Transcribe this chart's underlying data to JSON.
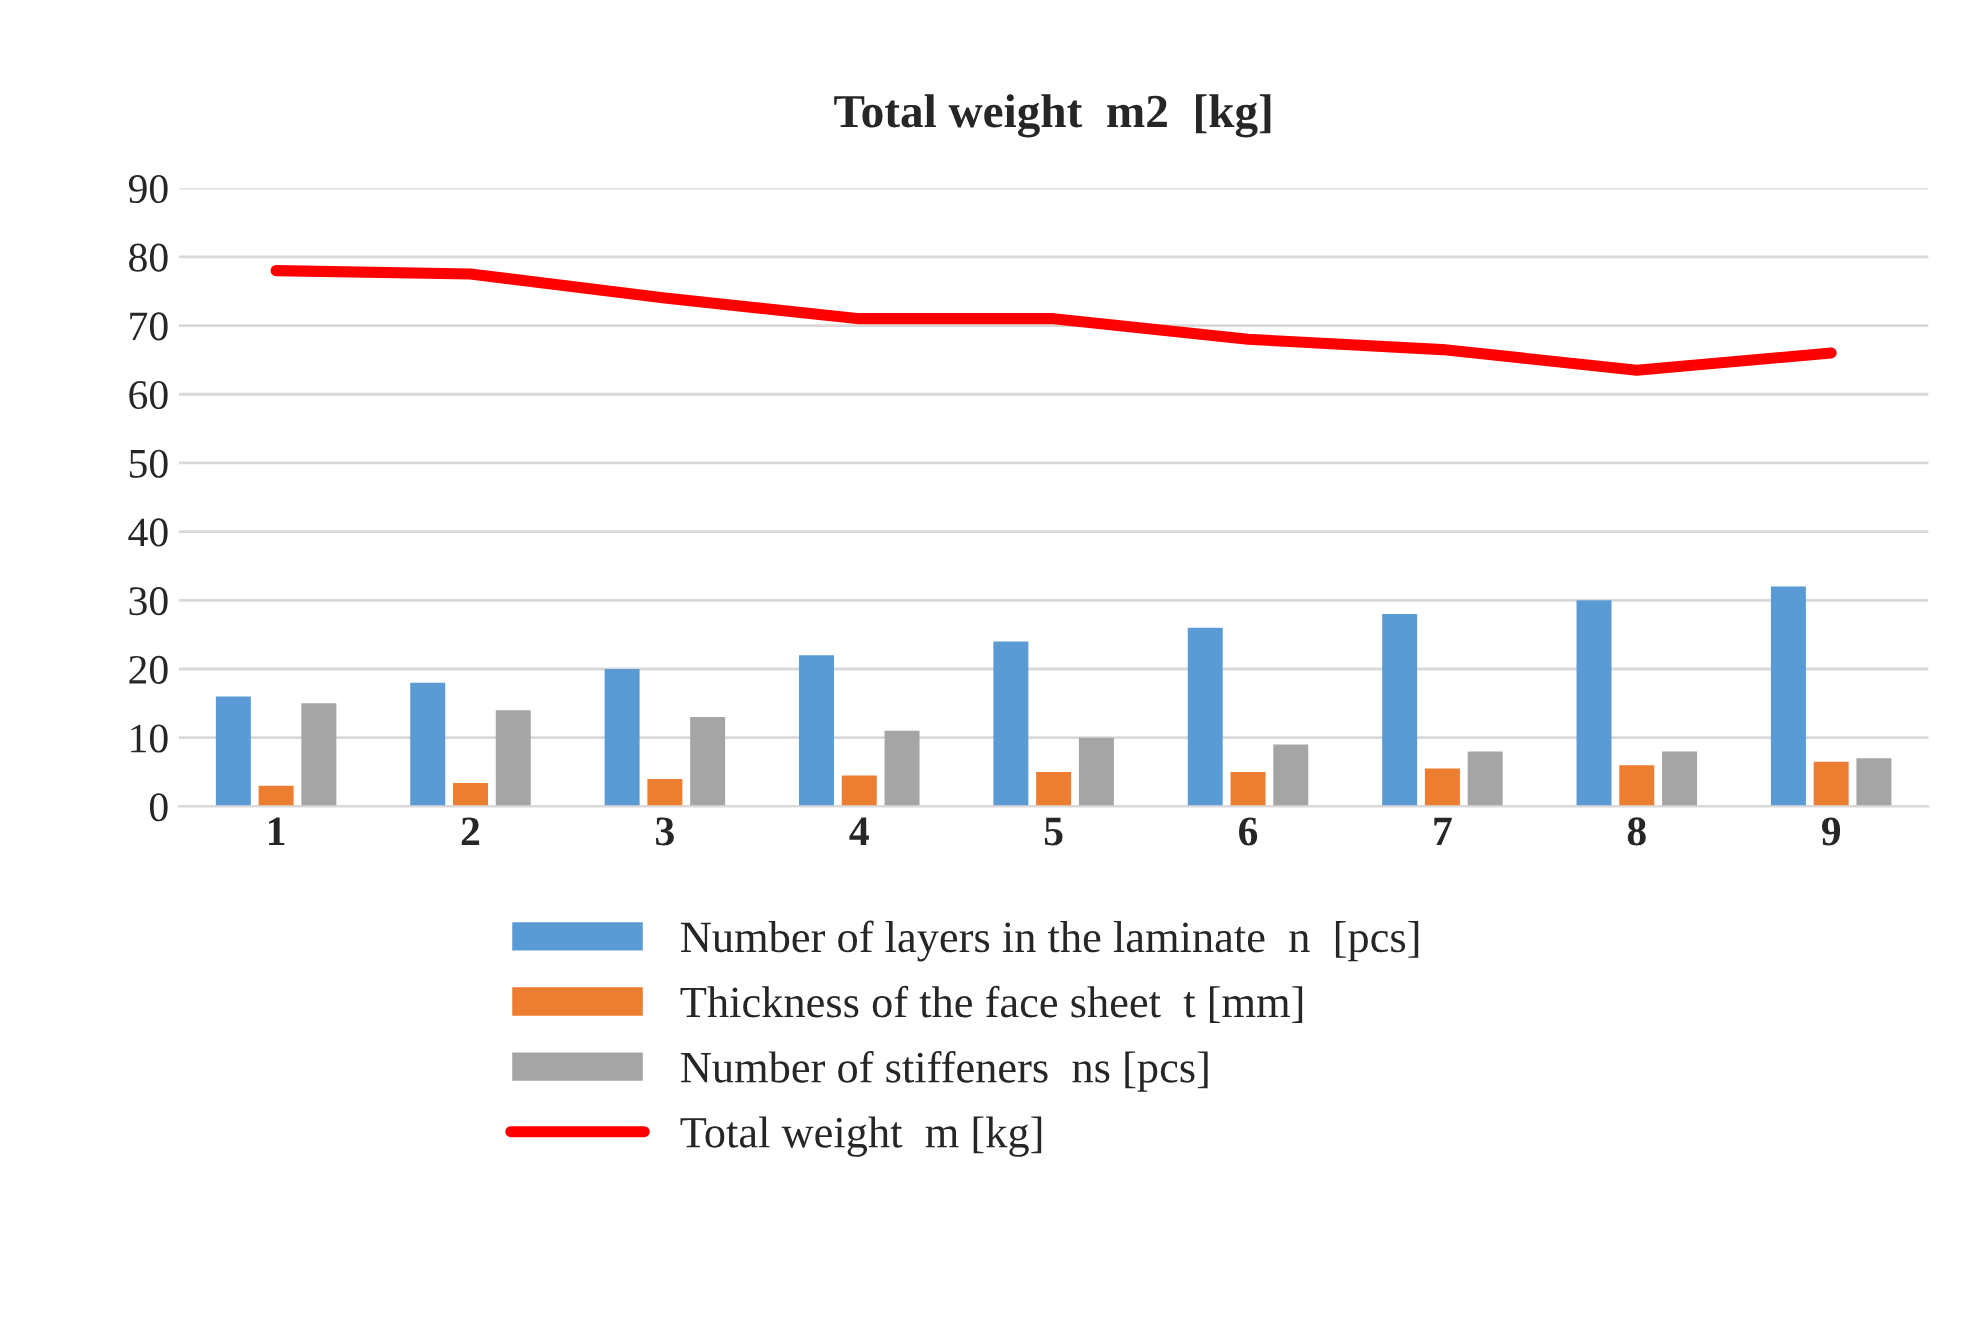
{
  "chart_data": {
    "type": "bar",
    "title": "Total weight  m2  [kg]",
    "categories": [
      "1",
      "2",
      "3",
      "4",
      "5",
      "6",
      "7",
      "8",
      "9"
    ],
    "series": [
      {
        "name": "Number of layers in the laminate  n  [pcs]",
        "color": "#5b9bd5",
        "values": [
          16,
          18,
          20,
          22,
          24,
          26,
          28,
          30,
          32
        ]
      },
      {
        "name": "Thickness of the face sheet  t [mm]",
        "color": "#ed7d31",
        "values": [
          3,
          3.4,
          4,
          4.5,
          5,
          5,
          5.5,
          6,
          6.5
        ]
      },
      {
        "name": "Number of stiffeners  ns [pcs]",
        "color": "#a5a5a5",
        "values": [
          15,
          14,
          13,
          11,
          10,
          9,
          8,
          8,
          7
        ]
      },
      {
        "name": "Total weight  m [kg]",
        "color": "#ff0000",
        "type": "line",
        "values": [
          78,
          77.5,
          74,
          71,
          71,
          68,
          66.5,
          63.5,
          66
        ]
      }
    ],
    "ylim": [
      0,
      90
    ],
    "yticks": [
      0,
      10,
      20,
      30,
      40,
      50,
      60,
      70,
      80,
      90
    ],
    "grid": "y",
    "legend": "bottom"
  }
}
